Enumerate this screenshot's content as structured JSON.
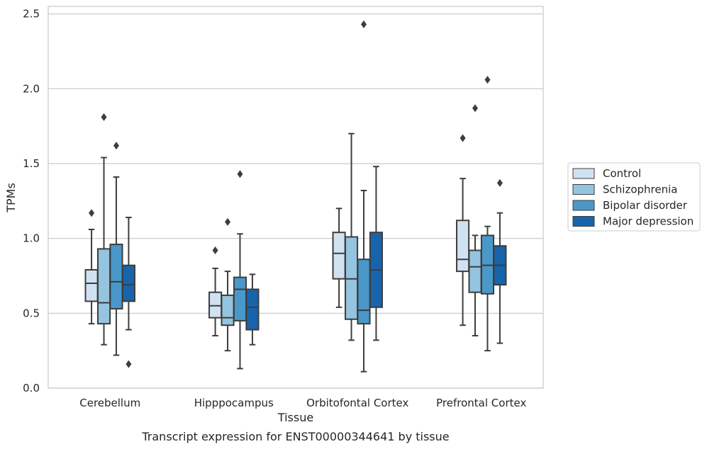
{
  "chart_data": {
    "type": "boxplot",
    "title": "",
    "caption": "Transcript expression for ENST00000344641 by tissue",
    "xlabel": "Tissue",
    "ylabel": "TPMs",
    "ylim": [
      0,
      2.55
    ],
    "yticks": [
      0.0,
      0.5,
      1.0,
      1.5,
      2.0,
      2.5
    ],
    "ytick_labels": [
      "0.0",
      "0.5",
      "1.0",
      "1.5",
      "2.0",
      "2.5"
    ],
    "grid": "horizontal",
    "legend_position": "right",
    "categories": [
      "Cerebellum",
      "Hipppocampus",
      "Orbitofontal Cortex",
      "Prefrontal Cortex"
    ],
    "series": [
      {
        "name": "Control",
        "color": "#d0e1f2",
        "boxes": [
          {
            "whislo": 0.43,
            "q1": 0.58,
            "med": 0.7,
            "q3": 0.79,
            "whishi": 1.06,
            "fliers": [
              1.17
            ]
          },
          {
            "whislo": 0.35,
            "q1": 0.47,
            "med": 0.55,
            "q3": 0.64,
            "whishi": 0.8,
            "fliers": [
              0.92
            ]
          },
          {
            "whislo": 0.54,
            "q1": 0.73,
            "med": 0.9,
            "q3": 1.04,
            "whishi": 1.2,
            "fliers": []
          },
          {
            "whislo": 0.42,
            "q1": 0.78,
            "med": 0.86,
            "q3": 1.12,
            "whishi": 1.4,
            "fliers": [
              1.67
            ]
          }
        ]
      },
      {
        "name": "Schizophrenia",
        "color": "#94c4df",
        "boxes": [
          {
            "whislo": 0.29,
            "q1": 0.43,
            "med": 0.57,
            "q3": 0.93,
            "whishi": 1.54,
            "fliers": [
              1.81
            ]
          },
          {
            "whislo": 0.25,
            "q1": 0.42,
            "med": 0.47,
            "q3": 0.62,
            "whishi": 0.78,
            "fliers": [
              1.11
            ]
          },
          {
            "whislo": 0.32,
            "q1": 0.46,
            "med": 0.73,
            "q3": 1.01,
            "whishi": 1.7,
            "fliers": []
          },
          {
            "whislo": 0.35,
            "q1": 0.64,
            "med": 0.81,
            "q3": 0.92,
            "whishi": 1.02,
            "fliers": [
              1.87
            ]
          }
        ]
      },
      {
        "name": "Bipolar disorder",
        "color": "#4a98c9",
        "boxes": [
          {
            "whislo": 0.22,
            "q1": 0.53,
            "med": 0.71,
            "q3": 0.96,
            "whishi": 1.41,
            "fliers": [
              1.62
            ]
          },
          {
            "whislo": 0.13,
            "q1": 0.45,
            "med": 0.66,
            "q3": 0.74,
            "whishi": 1.03,
            "fliers": [
              1.43
            ]
          },
          {
            "whislo": 0.11,
            "q1": 0.43,
            "med": 0.52,
            "q3": 0.86,
            "whishi": 1.32,
            "fliers": [
              2.43
            ]
          },
          {
            "whislo": 0.25,
            "q1": 0.63,
            "med": 0.82,
            "q3": 1.02,
            "whishi": 1.08,
            "fliers": [
              2.06
            ]
          }
        ]
      },
      {
        "name": "Major depression",
        "color": "#1764ab",
        "boxes": [
          {
            "whislo": 0.39,
            "q1": 0.58,
            "med": 0.69,
            "q3": 0.82,
            "whishi": 1.14,
            "fliers": [
              0.16
            ]
          },
          {
            "whislo": 0.29,
            "q1": 0.39,
            "med": 0.54,
            "q3": 0.66,
            "whishi": 0.76,
            "fliers": []
          },
          {
            "whislo": 0.32,
            "q1": 0.54,
            "med": 0.79,
            "q3": 1.04,
            "whishi": 1.48,
            "fliers": []
          },
          {
            "whislo": 0.3,
            "q1": 0.69,
            "med": 0.82,
            "q3": 0.95,
            "whishi": 1.17,
            "fliers": [
              1.37
            ]
          }
        ]
      }
    ]
  }
}
